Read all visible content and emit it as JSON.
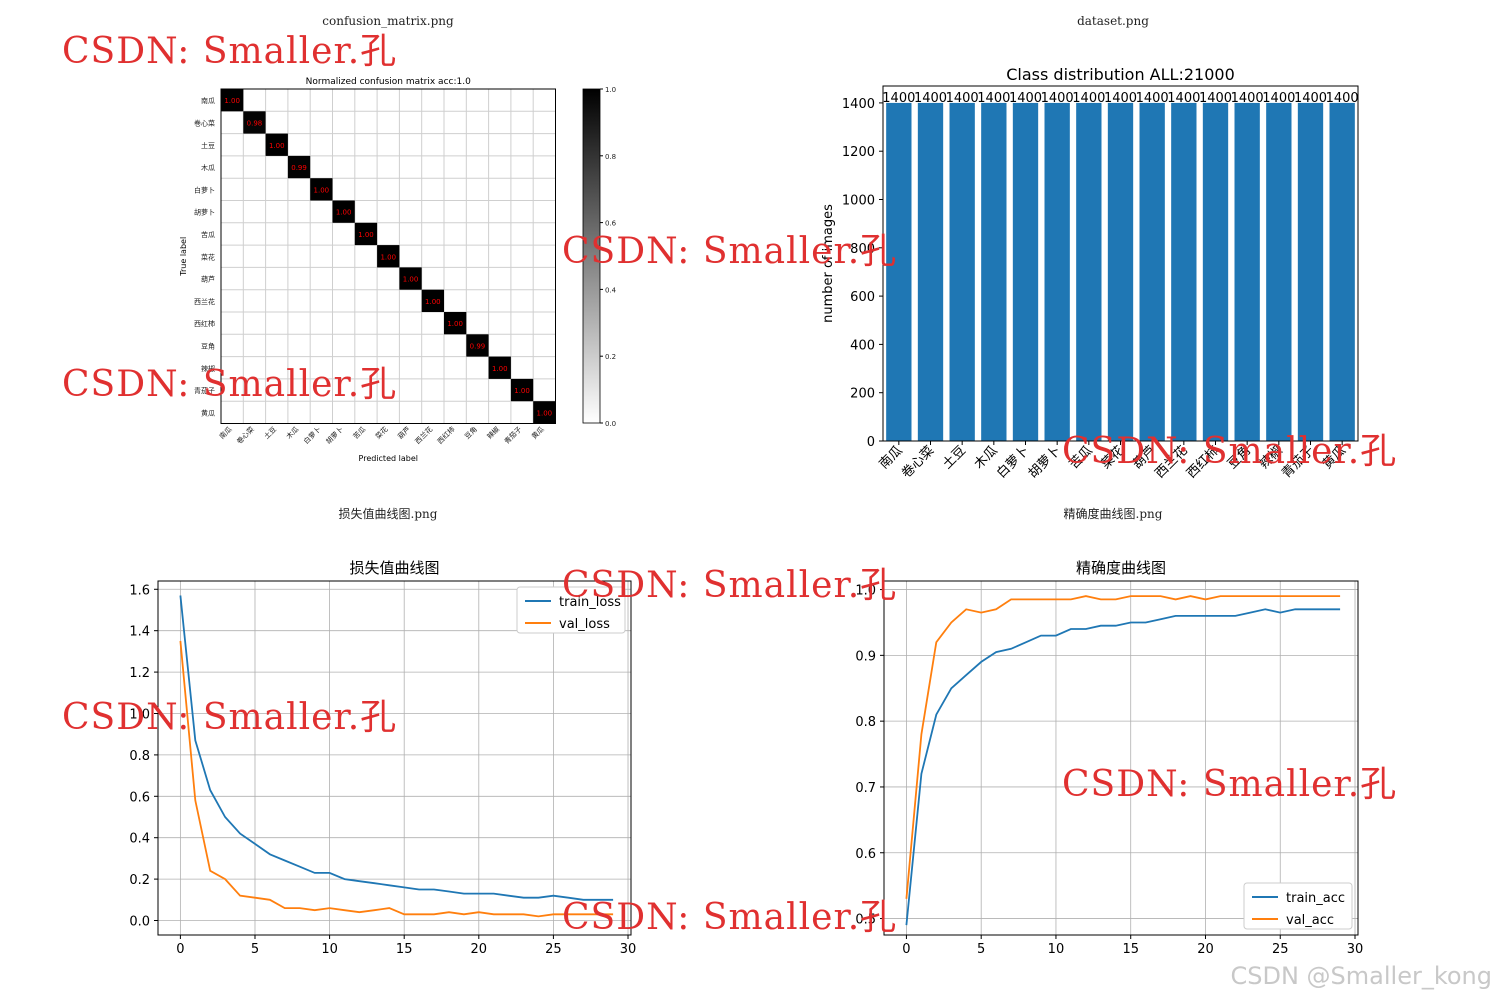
{
  "panels": {
    "confusion_title": "confusion_matrix.png",
    "dataset_title": "dataset.png",
    "loss_title": "损失值曲线图.png",
    "acc_title": "精确度曲线图.png"
  },
  "watermark": "CSDN: Smaller.孔",
  "footer": "CSDN @Smaller_kong",
  "classes": [
    "南瓜",
    "卷心菜",
    "土豆",
    "木瓜",
    "白萝卜",
    "胡萝卜",
    "苦瓜",
    "菜花",
    "葫芦",
    "西兰花",
    "西红柿",
    "豆角",
    "辣椒",
    "青茄子",
    "黄瓜"
  ],
  "chart_data": [
    {
      "type": "heatmap",
      "title": "Normalized confusion matrix acc:1.0",
      "xlabel": "Predicted label",
      "ylabel": "True label",
      "diagonal": [
        1.0,
        0.98,
        1.0,
        0.99,
        1.0,
        1.0,
        1.0,
        1.0,
        1.0,
        1.0,
        1.0,
        0.99,
        1.0,
        1.0,
        1.0
      ],
      "colorbar_ticks": [
        "0.0",
        "0.2",
        "0.4",
        "0.6",
        "0.8",
        "1.0"
      ],
      "colormap": [
        "#ffffff",
        "#000000"
      ],
      "value_color": "#ff0000"
    },
    {
      "type": "bar",
      "title": "Class distribution ALL:21000",
      "ylabel": "number of images",
      "values": [
        1400,
        1400,
        1400,
        1400,
        1400,
        1400,
        1400,
        1400,
        1400,
        1400,
        1400,
        1400,
        1400,
        1400,
        1400
      ],
      "value_labels": [
        "1400",
        "1400",
        "1400",
        "1400",
        "1400",
        "1400",
        "1400",
        "1400",
        "1400",
        "1400",
        "1400",
        "1400",
        "1400",
        "1400",
        "1400"
      ],
      "yticks": [
        "0",
        "200",
        "400",
        "600",
        "800",
        "1000",
        "1200",
        "1400"
      ],
      "ylim": [
        0,
        1470
      ],
      "color": "#1f77b4"
    },
    {
      "type": "line",
      "title": "损失值曲线图",
      "x": [
        0,
        1,
        2,
        3,
        4,
        5,
        6,
        7,
        8,
        9,
        10,
        11,
        12,
        13,
        14,
        15,
        16,
        17,
        18,
        19,
        20,
        21,
        22,
        23,
        24,
        25,
        26,
        27,
        28,
        29
      ],
      "series": [
        {
          "name": "train_loss",
          "color": "#1f77b4",
          "values": [
            1.57,
            0.87,
            0.63,
            0.5,
            0.42,
            0.37,
            0.32,
            0.29,
            0.26,
            0.23,
            0.23,
            0.2,
            0.19,
            0.18,
            0.17,
            0.16,
            0.15,
            0.15,
            0.14,
            0.13,
            0.13,
            0.13,
            0.12,
            0.11,
            0.11,
            0.12,
            0.11,
            0.1,
            0.1,
            0.1
          ]
        },
        {
          "name": "val_loss",
          "color": "#ff7f0e",
          "values": [
            1.35,
            0.58,
            0.24,
            0.2,
            0.12,
            0.11,
            0.1,
            0.06,
            0.06,
            0.05,
            0.06,
            0.05,
            0.04,
            0.05,
            0.06,
            0.03,
            0.03,
            0.03,
            0.04,
            0.03,
            0.04,
            0.03,
            0.03,
            0.03,
            0.02,
            0.03,
            0.03,
            0.03,
            0.03,
            0.03
          ]
        }
      ],
      "xticks": [
        "0",
        "5",
        "10",
        "15",
        "20",
        "25",
        "30"
      ],
      "yticks": [
        "0.0",
        "0.2",
        "0.4",
        "0.6",
        "0.8",
        "1.0",
        "1.2",
        "1.4",
        "1.6"
      ],
      "xlim": [
        -1.5,
        30.2
      ],
      "ylim": [
        -0.07,
        1.64
      ],
      "grid": true,
      "legend": "top-right"
    },
    {
      "type": "line",
      "title": "精确度曲线图",
      "x": [
        0,
        1,
        2,
        3,
        4,
        5,
        6,
        7,
        8,
        9,
        10,
        11,
        12,
        13,
        14,
        15,
        16,
        17,
        18,
        19,
        20,
        21,
        22,
        23,
        24,
        25,
        26,
        27,
        28,
        29
      ],
      "series": [
        {
          "name": "train_acc",
          "color": "#1f77b4",
          "values": [
            0.49,
            0.72,
            0.81,
            0.85,
            0.87,
            0.89,
            0.905,
            0.91,
            0.92,
            0.93,
            0.93,
            0.94,
            0.94,
            0.945,
            0.945,
            0.95,
            0.95,
            0.955,
            0.96,
            0.96,
            0.96,
            0.96,
            0.96,
            0.965,
            0.97,
            0.965,
            0.97,
            0.97,
            0.97,
            0.97
          ]
        },
        {
          "name": "val_acc",
          "color": "#ff7f0e",
          "values": [
            0.53,
            0.78,
            0.92,
            0.95,
            0.97,
            0.965,
            0.97,
            0.985,
            0.985,
            0.985,
            0.985,
            0.985,
            0.99,
            0.985,
            0.985,
            0.99,
            0.99,
            0.99,
            0.985,
            0.99,
            0.985,
            0.99,
            0.99,
            0.99,
            0.99,
            0.99,
            0.99,
            0.99,
            0.99,
            0.99
          ]
        }
      ],
      "xticks": [
        "0",
        "5",
        "10",
        "15",
        "20",
        "25",
        "30"
      ],
      "yticks": [
        "0.5",
        "0.6",
        "0.7",
        "0.8",
        "0.9",
        "1.0"
      ],
      "xlim": [
        -1.5,
        30.2
      ],
      "ylim": [
        0.475,
        1.013
      ],
      "grid": true,
      "legend": "bottom-right"
    }
  ]
}
